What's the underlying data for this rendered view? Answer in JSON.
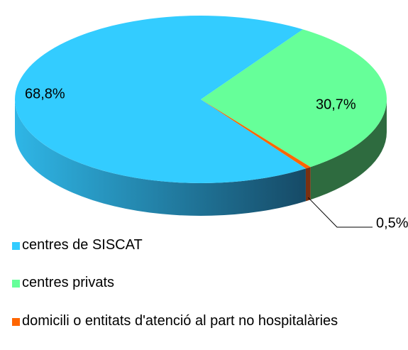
{
  "chart_data": {
    "type": "pie3d",
    "series": [
      {
        "name": "centres de SISCAT",
        "color": "#33ccff"
      },
      {
        "name": "centres privats",
        "color": "#66ff99"
      },
      {
        "name": "domicili o entitats d'atenció al part no hospitalàries",
        "color": "#ff6600"
      }
    ],
    "values": [
      68.8,
      30.7,
      0.5
    ],
    "value_labels": [
      "68,8%",
      "30,7%",
      "0,5%"
    ]
  }
}
